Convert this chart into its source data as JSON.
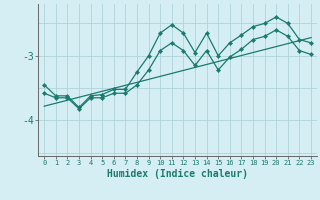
{
  "xlabel": "Humidex (Indice chaleur)",
  "bg_color": "#d4eef4",
  "grid_color": "#afd4dc",
  "line_color": "#1a7a6e",
  "xlim": [
    -0.5,
    23.5
  ],
  "ylim": [
    -4.55,
    -2.2
  ],
  "yticks": [
    -4,
    -3
  ],
  "xticks": [
    0,
    1,
    2,
    3,
    4,
    5,
    6,
    7,
    8,
    9,
    10,
    11,
    12,
    13,
    14,
    15,
    16,
    17,
    18,
    19,
    20,
    21,
    22,
    23
  ],
  "upper_y": [
    -3.45,
    -3.62,
    -3.62,
    -3.8,
    -3.62,
    -3.6,
    -3.52,
    -3.52,
    -3.25,
    -3.0,
    -2.65,
    -2.52,
    -2.65,
    -2.95,
    -2.65,
    -3.0,
    -2.8,
    -2.68,
    -2.55,
    -2.5,
    -2.4,
    -2.5,
    -2.75,
    -2.8
  ],
  "lower_y": [
    -3.58,
    -3.65,
    -3.65,
    -3.82,
    -3.65,
    -3.65,
    -3.58,
    -3.58,
    -3.45,
    -3.22,
    -2.92,
    -2.8,
    -2.92,
    -3.15,
    -2.92,
    -3.22,
    -3.02,
    -2.9,
    -2.75,
    -2.7,
    -2.6,
    -2.7,
    -2.92,
    -2.98
  ],
  "trend_x": [
    0,
    23
  ],
  "trend_y": [
    -3.78,
    -2.72
  ]
}
